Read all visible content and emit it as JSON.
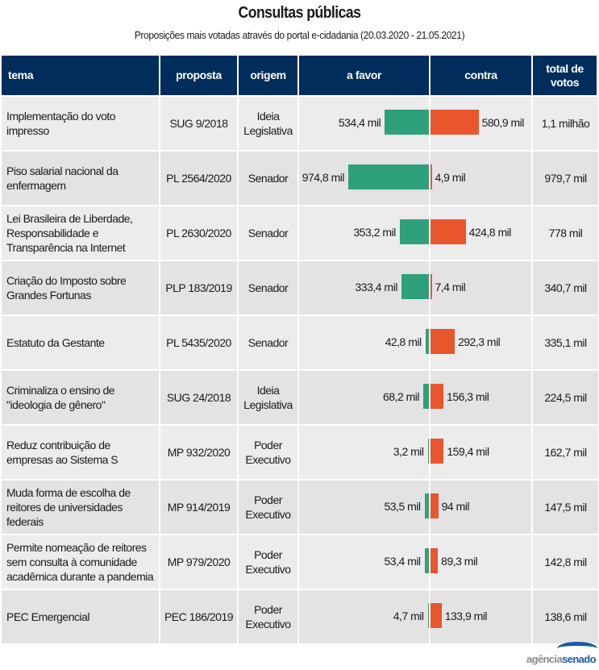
{
  "title": "Consultas públicas",
  "subtitle": "Proposições mais votadas através do portal e-cidadania (20.03.2020 - 21.05.2021)",
  "headers": {
    "tema": "tema",
    "proposta": "proposta",
    "origem": "origem",
    "favor": "a favor",
    "contra": "contra",
    "total": "total de votos"
  },
  "colors": {
    "header_bg": "#002d5b",
    "favor": "#2fa07c",
    "contra": "#e9552c"
  },
  "rows": [
    {
      "tema": "Implementação do voto impresso",
      "proposta": "SUG 9/2018",
      "origem": "Ideia Legislativa",
      "favor_label": "534,4 mil",
      "contra_label": "580,9 mil",
      "total": "1,1 milhão"
    },
    {
      "tema": "Piso salarial nacional da enfermagem",
      "proposta": "PL 2564/2020",
      "origem": "Senador",
      "favor_label": "974,8 mil",
      "contra_label": "4,9 mil",
      "total": "979,7 mil"
    },
    {
      "tema": "Lei Brasileira de Liberdade, Responsabilidade e Transparência na Internet",
      "proposta": "PL 2630/2020",
      "origem": "Senador",
      "favor_label": "353,2 mil",
      "contra_label": "424,8 mil",
      "total": "778 mil"
    },
    {
      "tema": "Criação do Imposto sobre Grandes Fortunas",
      "proposta": "PLP 183/2019",
      "origem": "Senador",
      "favor_label": "333,4 mil",
      "contra_label": "7,4 mil",
      "total": "340,7 mil"
    },
    {
      "tema": "Estatuto da Gestante",
      "proposta": "PL 5435/2020",
      "origem": "Senador",
      "favor_label": "42,8 mil",
      "contra_label": "292,3 mil",
      "total": "335,1 mil"
    },
    {
      "tema": "Criminaliza o ensino de \"ideologia de gênero\"",
      "proposta": "SUG 24/2018",
      "origem": "Ideia Legislativa",
      "favor_label": "68,2 mil",
      "contra_label": "156,3 mil",
      "total": "224,5 mil"
    },
    {
      "tema": "Reduz contribuição de empresas ao Sistema S",
      "proposta": "MP 932/2020",
      "origem": "Poder Executivo",
      "favor_label": "3,2 mil",
      "contra_label": "159,4 mil",
      "total": "162,7 mil"
    },
    {
      "tema": "Muda forma de escolha de reitores de universidades federais",
      "proposta": "MP 914/2019",
      "origem": "Poder Executivo",
      "favor_label": "53,5 mil",
      "contra_label": "94 mil",
      "total": "147,5 mil"
    },
    {
      "tema": "Permite nomeação de reitores sem consulta à comunidade acadêmica durante a pandemia",
      "proposta": "MP 979/2020",
      "origem": "Poder Executivo",
      "favor_label": "53,4 mil",
      "contra_label": "89,3 mil",
      "total": "142,8 mil"
    },
    {
      "tema": "PEC Emergencial",
      "proposta": "PEC 186/2019",
      "origem": "Poder Executivo",
      "favor_label": "4,7 mil",
      "contra_label": "133,9 mil",
      "total": "138,6 mil"
    }
  ],
  "logo": {
    "part1": "agência",
    "part2": "senado"
  },
  "chart_data": {
    "type": "bar",
    "title": "Consultas públicas",
    "subtitle": "Proposições mais votadas através do portal e-cidadania (20.03.2020 - 21.05.2021)",
    "orientation": "diverging-horizontal",
    "units": "mil votos",
    "categories": [
      "SUG 9/2018",
      "PL 2564/2020",
      "PL 2630/2020",
      "PLP 183/2019",
      "PL 5435/2020",
      "SUG 24/2018",
      "MP 932/2020",
      "MP 914/2019",
      "MP 979/2020",
      "PEC 186/2019"
    ],
    "series": [
      {
        "name": "a favor",
        "values": [
          534.4,
          974.8,
          353.2,
          333.4,
          42.8,
          68.2,
          3.2,
          53.5,
          53.4,
          4.7
        ]
      },
      {
        "name": "contra",
        "values": [
          580.9,
          4.9,
          424.8,
          7.4,
          292.3,
          156.3,
          159.4,
          94,
          89.3,
          133.9
        ]
      }
    ],
    "totals": [
      1100,
      979.7,
      778,
      340.7,
      335.1,
      224.5,
      162.7,
      147.5,
      142.8,
      138.6
    ]
  }
}
